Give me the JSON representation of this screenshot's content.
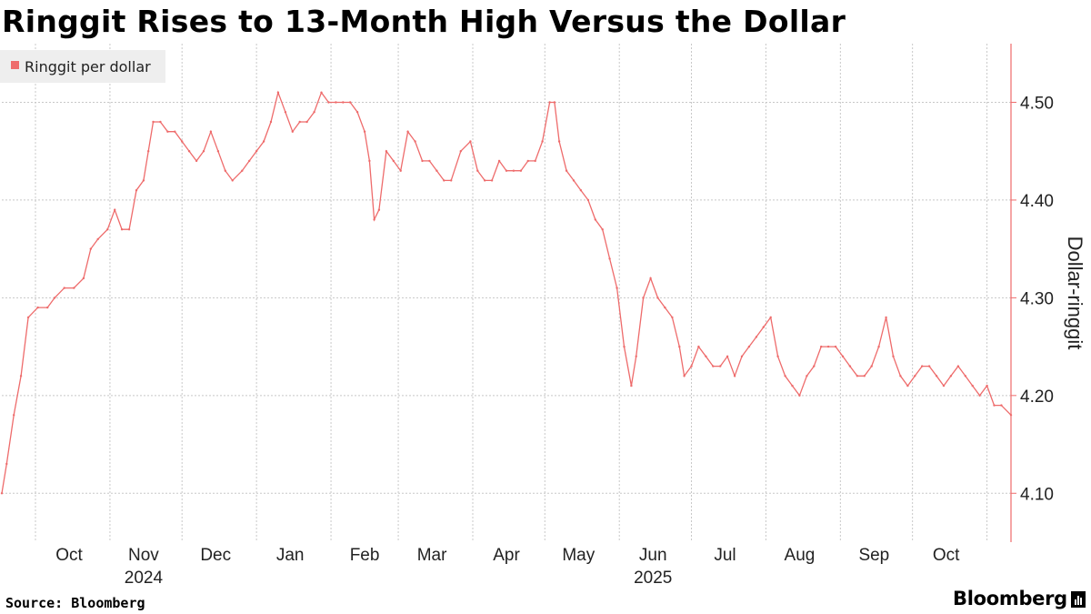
{
  "title": "Ringgit Rises to 13-Month High Versus the Dollar",
  "source": "Source: Bloomberg",
  "brand": "Bloomberg",
  "colors": {
    "series": "#ee6b6b",
    "grid": "#c8c8c8",
    "axis": "#ee6b6b",
    "legend_bg": "#eeeeee"
  },
  "chart_data": {
    "type": "line",
    "title": "Ringgit Rises to 13-Month High Versus the Dollar",
    "ylabel": "Dollar-ringgit",
    "ylim": [
      4.05,
      4.56
    ],
    "yticks": [
      "4.10",
      "4.20",
      "4.30",
      "4.40",
      "4.50"
    ],
    "x_range": [
      "2024-09-17",
      "2025-11-11"
    ],
    "month_ticks": [
      {
        "label": "Oct",
        "date": "2024-10-15"
      },
      {
        "label": "Nov",
        "date": "2024-11-15"
      },
      {
        "label": "Dec",
        "date": "2024-12-15"
      },
      {
        "label": "Jan",
        "date": "2025-01-15"
      },
      {
        "label": "Feb",
        "date": "2025-02-15"
      },
      {
        "label": "Mar",
        "date": "2025-03-15"
      },
      {
        "label": "Apr",
        "date": "2025-04-15"
      },
      {
        "label": "May",
        "date": "2025-05-15"
      },
      {
        "label": "Jun",
        "date": "2025-06-15"
      },
      {
        "label": "Jul",
        "date": "2025-07-15"
      },
      {
        "label": "Aug",
        "date": "2025-08-15"
      },
      {
        "label": "Sep",
        "date": "2025-09-15"
      },
      {
        "label": "Oct",
        "date": "2025-10-15"
      }
    ],
    "month_boundaries": [
      "2024-10-01",
      "2024-11-01",
      "2024-12-01",
      "2025-01-01",
      "2025-02-01",
      "2025-03-01",
      "2025-04-01",
      "2025-05-01",
      "2025-06-01",
      "2025-07-01",
      "2025-08-01",
      "2025-09-01",
      "2025-10-01",
      "2025-11-01"
    ],
    "year_labels": [
      {
        "label": "2024",
        "date": "2024-11-15"
      },
      {
        "label": "2025",
        "date": "2025-06-15"
      }
    ],
    "grid": true,
    "legend": "top-left",
    "series": [
      {
        "name": "Ringgit per dollar",
        "points": [
          [
            "2024-09-17",
            4.1
          ],
          [
            "2024-09-19",
            4.13
          ],
          [
            "2024-09-22",
            4.18
          ],
          [
            "2024-09-25",
            4.22
          ],
          [
            "2024-09-28",
            4.28
          ],
          [
            "2024-10-02",
            4.29
          ],
          [
            "2024-10-06",
            4.29
          ],
          [
            "2024-10-09",
            4.3
          ],
          [
            "2024-10-13",
            4.31
          ],
          [
            "2024-10-17",
            4.31
          ],
          [
            "2024-10-21",
            4.32
          ],
          [
            "2024-10-24",
            4.35
          ],
          [
            "2024-10-27",
            4.36
          ],
          [
            "2024-10-31",
            4.37
          ],
          [
            "2024-11-03",
            4.39
          ],
          [
            "2024-11-06",
            4.37
          ],
          [
            "2024-11-09",
            4.37
          ],
          [
            "2024-11-12",
            4.41
          ],
          [
            "2024-11-15",
            4.42
          ],
          [
            "2024-11-17",
            4.45
          ],
          [
            "2024-11-19",
            4.48
          ],
          [
            "2024-11-22",
            4.48
          ],
          [
            "2024-11-25",
            4.47
          ],
          [
            "2024-11-28",
            4.47
          ],
          [
            "2024-12-01",
            4.46
          ],
          [
            "2024-12-04",
            4.45
          ],
          [
            "2024-12-07",
            4.44
          ],
          [
            "2024-12-10",
            4.45
          ],
          [
            "2024-12-13",
            4.47
          ],
          [
            "2024-12-16",
            4.45
          ],
          [
            "2024-12-19",
            4.43
          ],
          [
            "2024-12-22",
            4.42
          ],
          [
            "2024-12-26",
            4.43
          ],
          [
            "2024-12-29",
            4.44
          ],
          [
            "2025-01-01",
            4.45
          ],
          [
            "2025-01-04",
            4.46
          ],
          [
            "2025-01-07",
            4.48
          ],
          [
            "2025-01-10",
            4.51
          ],
          [
            "2025-01-13",
            4.49
          ],
          [
            "2025-01-16",
            4.47
          ],
          [
            "2025-01-19",
            4.48
          ],
          [
            "2025-01-22",
            4.48
          ],
          [
            "2025-01-25",
            4.49
          ],
          [
            "2025-01-28",
            4.51
          ],
          [
            "2025-01-31",
            4.5
          ],
          [
            "2025-02-03",
            4.5
          ],
          [
            "2025-02-06",
            4.5
          ],
          [
            "2025-02-09",
            4.5
          ],
          [
            "2025-02-12",
            4.49
          ],
          [
            "2025-02-15",
            4.47
          ],
          [
            "2025-02-17",
            4.44
          ],
          [
            "2025-02-19",
            4.38
          ],
          [
            "2025-02-21",
            4.39
          ],
          [
            "2025-02-24",
            4.45
          ],
          [
            "2025-02-27",
            4.44
          ],
          [
            "2025-03-02",
            4.43
          ],
          [
            "2025-03-05",
            4.47
          ],
          [
            "2025-03-08",
            4.46
          ],
          [
            "2025-03-11",
            4.44
          ],
          [
            "2025-03-14",
            4.44
          ],
          [
            "2025-03-17",
            4.43
          ],
          [
            "2025-03-20",
            4.42
          ],
          [
            "2025-03-23",
            4.42
          ],
          [
            "2025-03-27",
            4.45
          ],
          [
            "2025-03-31",
            4.46
          ],
          [
            "2025-04-03",
            4.43
          ],
          [
            "2025-04-06",
            4.42
          ],
          [
            "2025-04-09",
            4.42
          ],
          [
            "2025-04-12",
            4.44
          ],
          [
            "2025-04-15",
            4.43
          ],
          [
            "2025-04-18",
            4.43
          ],
          [
            "2025-04-21",
            4.43
          ],
          [
            "2025-04-24",
            4.44
          ],
          [
            "2025-04-27",
            4.44
          ],
          [
            "2025-04-30",
            4.46
          ],
          [
            "2025-05-03",
            4.5
          ],
          [
            "2025-05-05",
            4.5
          ],
          [
            "2025-05-07",
            4.46
          ],
          [
            "2025-05-10",
            4.43
          ],
          [
            "2025-05-13",
            4.42
          ],
          [
            "2025-05-16",
            4.41
          ],
          [
            "2025-05-19",
            4.4
          ],
          [
            "2025-05-22",
            4.38
          ],
          [
            "2025-05-25",
            4.37
          ],
          [
            "2025-05-28",
            4.34
          ],
          [
            "2025-05-31",
            4.31
          ],
          [
            "2025-06-03",
            4.25
          ],
          [
            "2025-06-06",
            4.21
          ],
          [
            "2025-06-08",
            4.24
          ],
          [
            "2025-06-11",
            4.3
          ],
          [
            "2025-06-14",
            4.32
          ],
          [
            "2025-06-17",
            4.3
          ],
          [
            "2025-06-20",
            4.29
          ],
          [
            "2025-06-23",
            4.28
          ],
          [
            "2025-06-26",
            4.25
          ],
          [
            "2025-06-28",
            4.22
          ],
          [
            "2025-07-01",
            4.23
          ],
          [
            "2025-07-04",
            4.25
          ],
          [
            "2025-07-07",
            4.24
          ],
          [
            "2025-07-10",
            4.23
          ],
          [
            "2025-07-13",
            4.23
          ],
          [
            "2025-07-16",
            4.24
          ],
          [
            "2025-07-19",
            4.22
          ],
          [
            "2025-07-22",
            4.24
          ],
          [
            "2025-07-25",
            4.25
          ],
          [
            "2025-07-28",
            4.26
          ],
          [
            "2025-07-31",
            4.27
          ],
          [
            "2025-08-03",
            4.28
          ],
          [
            "2025-08-06",
            4.24
          ],
          [
            "2025-08-09",
            4.22
          ],
          [
            "2025-08-12",
            4.21
          ],
          [
            "2025-08-15",
            4.2
          ],
          [
            "2025-08-18",
            4.22
          ],
          [
            "2025-08-21",
            4.23
          ],
          [
            "2025-08-24",
            4.25
          ],
          [
            "2025-08-27",
            4.25
          ],
          [
            "2025-08-30",
            4.25
          ],
          [
            "2025-09-02",
            4.24
          ],
          [
            "2025-09-05",
            4.23
          ],
          [
            "2025-09-08",
            4.22
          ],
          [
            "2025-09-11",
            4.22
          ],
          [
            "2025-09-14",
            4.23
          ],
          [
            "2025-09-17",
            4.25
          ],
          [
            "2025-09-20",
            4.28
          ],
          [
            "2025-09-23",
            4.24
          ],
          [
            "2025-09-26",
            4.22
          ],
          [
            "2025-09-29",
            4.21
          ],
          [
            "2025-10-02",
            4.22
          ],
          [
            "2025-10-05",
            4.23
          ],
          [
            "2025-10-08",
            4.23
          ],
          [
            "2025-10-11",
            4.22
          ],
          [
            "2025-10-14",
            4.21
          ],
          [
            "2025-10-17",
            4.22
          ],
          [
            "2025-10-20",
            4.23
          ],
          [
            "2025-10-23",
            4.22
          ],
          [
            "2025-10-26",
            4.21
          ],
          [
            "2025-10-29",
            4.2
          ],
          [
            "2025-11-01",
            4.21
          ],
          [
            "2025-11-04",
            4.19
          ],
          [
            "2025-11-07",
            4.19
          ],
          [
            "2025-11-11",
            4.18
          ]
        ]
      }
    ]
  }
}
